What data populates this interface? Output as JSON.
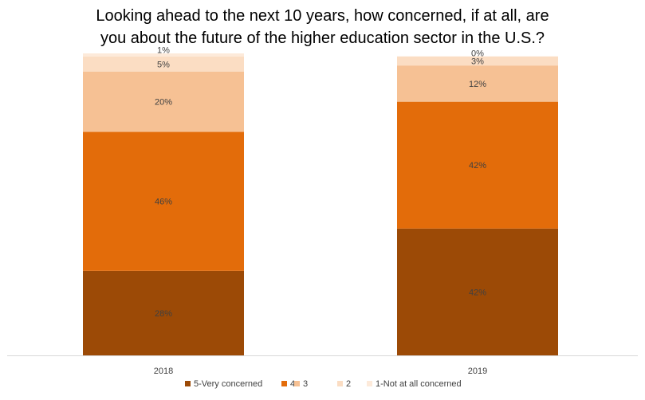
{
  "chart_data": {
    "type": "bar",
    "stacked": true,
    "title_lines": [
      "Looking ahead to the next 10 years, how concerned, if at all, are",
      "you about the future of the higher education sector in the U.S.?"
    ],
    "categories": [
      "2018",
      "2019"
    ],
    "series": [
      {
        "name": "5-Very concerned",
        "values": [
          28,
          42
        ],
        "labels": [
          "28%",
          "42%"
        ],
        "color": "#9C4A06"
      },
      {
        "name": "4",
        "values": [
          46,
          42
        ],
        "labels": [
          "46%",
          "42%"
        ],
        "color": "#E36C0A"
      },
      {
        "name": "3",
        "values": [
          20,
          12
        ],
        "labels": [
          "20%",
          "12%"
        ],
        "color": "#F6C194"
      },
      {
        "name": "2",
        "values": [
          5,
          3
        ],
        "labels": [
          "5%",
          "3%"
        ],
        "color": "#FBDDC3"
      },
      {
        "name": "1-Not at all concerned",
        "values": [
          1,
          0
        ],
        "labels": [
          "1%",
          "0%"
        ],
        "color": "#FDEADA"
      }
    ],
    "ylim": [
      0,
      100
    ],
    "grid": false,
    "legend_position": "bottom"
  }
}
